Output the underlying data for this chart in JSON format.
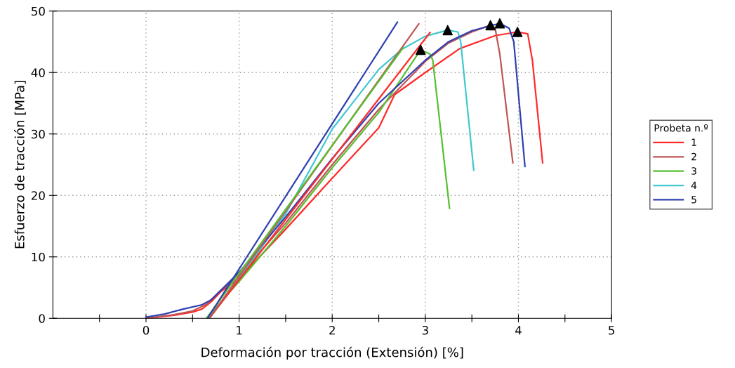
{
  "chart_data": {
    "type": "line",
    "xlabel": "Deformación por tracción (Extensión) [%]",
    "ylabel": "Esfuerzo de tracción [MPa]",
    "legend_title": "Probeta n.º",
    "legend": "right",
    "grid": true,
    "xlim": [
      -1,
      5
    ],
    "xticks": [
      {
        "value": -0.5,
        "label": null
      },
      0,
      {
        "value": 0.5,
        "label": null
      },
      1,
      {
        "value": 1.5,
        "label": null
      },
      2,
      {
        "value": 2.5,
        "label": null
      },
      3,
      {
        "value": 3.5,
        "label": null
      },
      4,
      {
        "value": 4.5,
        "label": null
      },
      5
    ],
    "ylim": [
      0,
      50
    ],
    "yticks": [
      0,
      10,
      20,
      30,
      40,
      50
    ],
    "series": [
      {
        "name": "1",
        "color": "#ff2a2a",
        "x": [
          0,
          0.3,
          0.5,
          0.6,
          0.7,
          0.8,
          1,
          1.5,
          2,
          2.5,
          2.67,
          3,
          3.37,
          3.75,
          3.99,
          4.1,
          4.15,
          4.26
        ],
        "values": [
          0,
          0.5,
          1,
          1.5,
          2.7,
          4.3,
          6.5,
          14.5,
          22.8,
          31,
          36.4,
          40,
          43.9,
          46,
          46.6,
          46.3,
          42,
          25.3
        ]
      },
      {
        "name": "2",
        "color": "#c05555",
        "x": [
          0,
          0.3,
          0.5,
          0.65,
          0.8,
          1,
          1.5,
          2,
          2.5,
          3,
          3.25,
          3.5,
          3.7,
          3.75,
          3.8,
          3.94
        ],
        "values": [
          0,
          0.6,
          1.2,
          2.3,
          4.5,
          7,
          15.5,
          25,
          34,
          41.8,
          44.8,
          46.6,
          47.7,
          47.2,
          43,
          25.3
        ]
      },
      {
        "name": "3",
        "color": "#55c030",
        "x": [
          0.65,
          1,
          1.5,
          2,
          2.5,
          2.95,
          3.05,
          3.08,
          3.26
        ],
        "values": [
          0,
          6,
          15,
          24.5,
          33.5,
          43.7,
          43,
          42,
          17.9
        ]
      },
      {
        "name": "4",
        "color": "#40c8d0",
        "x": [
          0.68,
          1,
          1.5,
          2,
          2.5,
          2.75,
          3,
          3.24,
          3.35,
          3.38,
          3.52
        ],
        "values": [
          0,
          6.5,
          17,
          30.8,
          40.5,
          43.8,
          45.9,
          46.9,
          46.6,
          45,
          24.1
        ]
      },
      {
        "name": "5",
        "color": "#3040b0",
        "x": [
          0,
          0.2,
          0.4,
          0.6,
          0.7,
          0.8,
          1,
          1.5,
          2,
          2.5,
          3,
          3.25,
          3.5,
          3.8,
          3.9,
          3.95,
          4.07
        ],
        "values": [
          0.2,
          0.7,
          1.5,
          2.2,
          3,
          4.5,
          7.5,
          16.5,
          26,
          35,
          42,
          45,
          46.8,
          48,
          47.2,
          45,
          24.7
        ]
      },
      {
        "color": "#ff2a2a",
        "x": [
          0.68,
          3.05
        ],
        "values": [
          0,
          46.5
        ]
      },
      {
        "color": "#c05555",
        "x": [
          0.68,
          2.93
        ],
        "values": [
          0,
          47.9
        ]
      },
      {
        "color": "#55c030",
        "x": [
          0.65,
          2.76
        ],
        "values": [
          0,
          44
        ]
      },
      {
        "color": "#3040b0",
        "x": [
          0.66,
          2.7
        ],
        "values": [
          0,
          48.2
        ]
      },
      {
        "type": "scatter",
        "marker": "triangle",
        "color": "#000000",
        "x": [
          3.99,
          3.7,
          2.95,
          3.24,
          3.8
        ],
        "values": [
          46.6,
          47.7,
          43.7,
          46.9,
          48
        ]
      }
    ]
  }
}
